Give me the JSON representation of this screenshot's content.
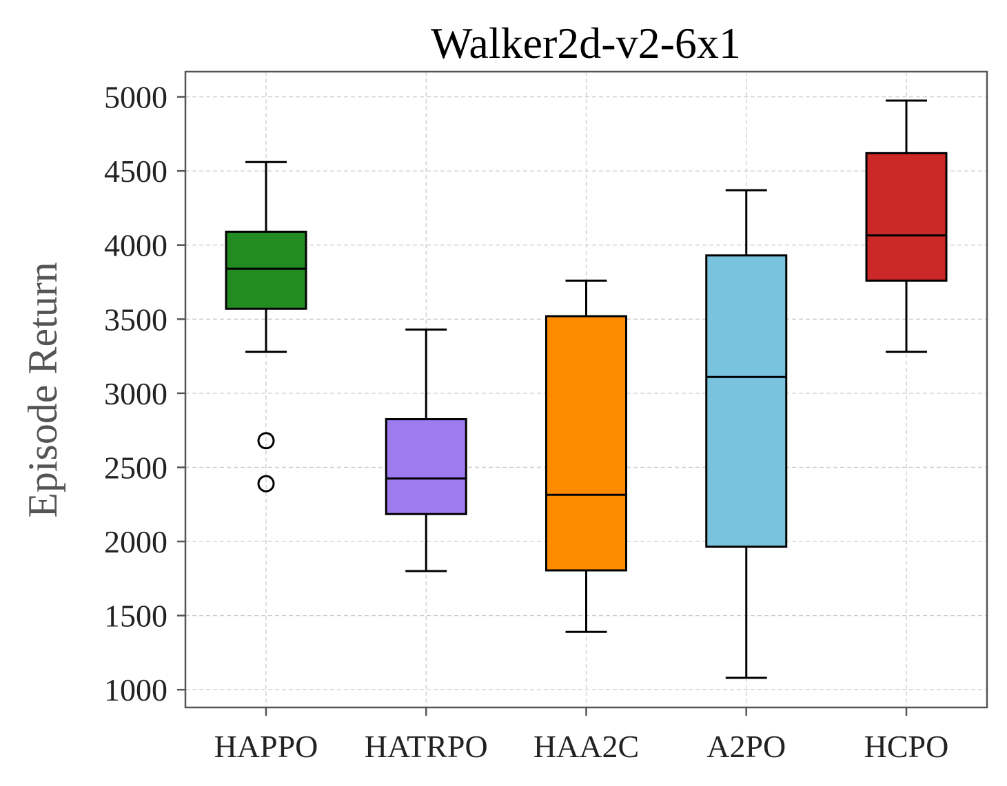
{
  "chart_data": {
    "type": "box",
    "title": "Walker2d-v2-6x1",
    "xlabel": "",
    "ylabel": "Episode Return",
    "ylim": [
      880,
      5170
    ],
    "yticks": [
      1000,
      1500,
      2000,
      2500,
      3000,
      3500,
      4000,
      4500,
      5000
    ],
    "ytick_labels": [
      "1000",
      "1500",
      "2000",
      "2500",
      "3000",
      "3500",
      "4000",
      "4500",
      "5000"
    ],
    "grid": true,
    "categories": [
      "HAPPO",
      "HATRPO",
      "HAA2C",
      "A2PO",
      "HCPO"
    ],
    "colors": [
      "#228b22",
      "#9e7bee",
      "#ff8c00",
      "#7ac3de",
      "#cc2828"
    ],
    "boxes": [
      {
        "name": "HAPPO",
        "whislo": 3280,
        "q1": 3570,
        "med": 3840,
        "q3": 4090,
        "whishi": 4560,
        "fliers": [
          2680,
          2390
        ]
      },
      {
        "name": "HATRPO",
        "whislo": 1800,
        "q1": 2185,
        "med": 2425,
        "q3": 2825,
        "whishi": 3430,
        "fliers": []
      },
      {
        "name": "HAA2C",
        "whislo": 1390,
        "q1": 1805,
        "med": 2315,
        "q3": 3520,
        "whishi": 3760,
        "fliers": []
      },
      {
        "name": "A2PO",
        "whislo": 1080,
        "q1": 1965,
        "med": 3110,
        "q3": 3930,
        "whishi": 4370,
        "fliers": []
      },
      {
        "name": "HCPO",
        "whislo": 3280,
        "q1": 3760,
        "med": 4065,
        "q3": 4620,
        "whishi": 4975,
        "fliers": []
      }
    ]
  }
}
